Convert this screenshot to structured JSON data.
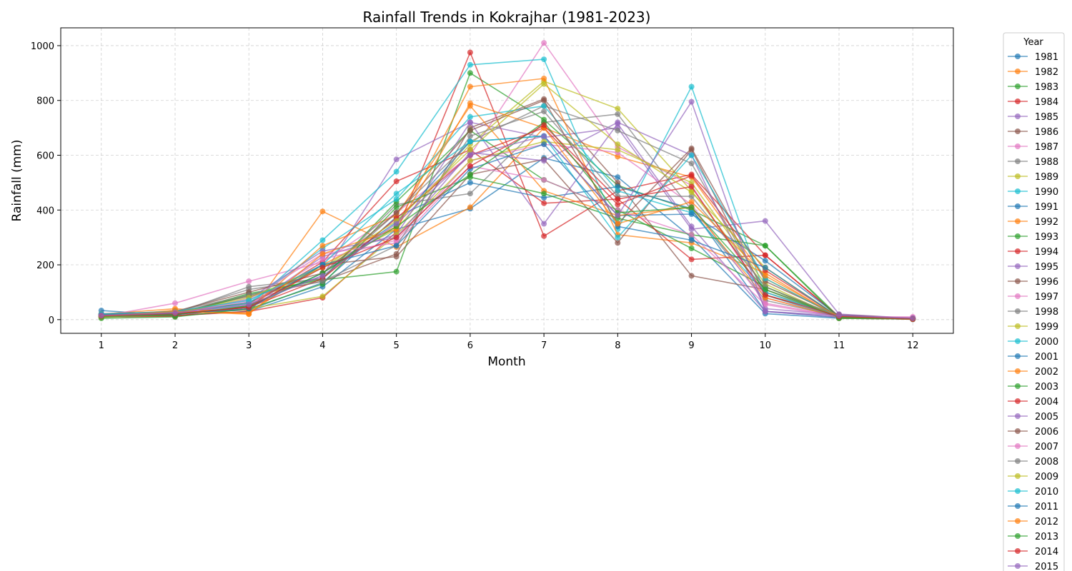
{
  "chart_data": {
    "type": "line",
    "title": "Rainfall Trends in Kokrajhar (1981-2023)",
    "xlabel": "Month",
    "ylabel": "Rainfall (mm)",
    "x": [
      1,
      2,
      3,
      4,
      5,
      6,
      7,
      8,
      9,
      10,
      11,
      12
    ],
    "xlim": [
      0.45,
      12.55
    ],
    "ylim": [
      -50,
      1065
    ],
    "yticks": [
      0,
      200,
      400,
      600,
      800,
      1000
    ],
    "grid": true,
    "legend": {
      "title": "Year",
      "placement": "outside-right"
    },
    "palette": [
      "#1f77b4",
      "#ff7f0e",
      "#2ca02c",
      "#d62728",
      "#9467bd",
      "#8c564b",
      "#e377c2",
      "#7f7f7f",
      "#bcbd22",
      "#17becf"
    ],
    "series": [
      {
        "name": "1981",
        "values": [
          33,
          15,
          30,
          120,
          330,
          405,
          590,
          520,
          300,
          22,
          5,
          2
        ]
      },
      {
        "name": "1982",
        "values": [
          20,
          40,
          20,
          395,
          265,
          410,
          700,
          595,
          520,
          150,
          8,
          1
        ]
      },
      {
        "name": "1983",
        "values": [
          10,
          18,
          95,
          145,
          175,
          900,
          730,
          490,
          400,
          270,
          10,
          3
        ]
      },
      {
        "name": "1984",
        "values": [
          12,
          14,
          30,
          80,
          320,
          975,
          305,
          470,
          530,
          235,
          12,
          2
        ]
      },
      {
        "name": "1985",
        "values": [
          15,
          20,
          65,
          160,
          585,
          720,
          665,
          700,
          330,
          360,
          20,
          5
        ]
      },
      {
        "name": "1986",
        "values": [
          18,
          25,
          85,
          140,
          240,
          700,
          805,
          500,
          160,
          110,
          15,
          3
        ]
      },
      {
        "name": "1987",
        "values": [
          12,
          60,
          140,
          210,
          390,
          600,
          1010,
          630,
          490,
          80,
          10,
          2
        ]
      },
      {
        "name": "1988",
        "values": [
          20,
          22,
          120,
          150,
          420,
          460,
          720,
          750,
          400,
          70,
          12,
          3
        ]
      },
      {
        "name": "1989",
        "values": [
          10,
          28,
          60,
          190,
          330,
          640,
          870,
          770,
          470,
          120,
          10,
          2
        ]
      },
      {
        "name": "1990",
        "values": [
          14,
          28,
          50,
          290,
          540,
          930,
          950,
          330,
          850,
          90,
          6,
          4
        ]
      },
      {
        "name": "1991",
        "values": [
          20,
          25,
          35,
          135,
          375,
          500,
          445,
          485,
          405,
          30,
          8,
          1
        ]
      },
      {
        "name": "1992",
        "values": [
          8,
          30,
          25,
          200,
          340,
          850,
          880,
          310,
          280,
          170,
          5,
          2
        ]
      },
      {
        "name": "1993",
        "values": [
          12,
          15,
          90,
          150,
          430,
          690,
          510,
          400,
          260,
          120,
          8,
          4
        ]
      },
      {
        "name": "1994",
        "values": [
          10,
          12,
          50,
          210,
          505,
          620,
          425,
          440,
          220,
          235,
          10,
          3
        ]
      },
      {
        "name": "1995",
        "values": [
          12,
          20,
          45,
          230,
          310,
          720,
          350,
          715,
          340,
          30,
          9,
          3
        ]
      },
      {
        "name": "1996",
        "values": [
          20,
          30,
          60,
          200,
          230,
          530,
          585,
          280,
          620,
          90,
          18,
          5
        ]
      },
      {
        "name": "1997",
        "values": [
          15,
          25,
          55,
          220,
          290,
          580,
          640,
          610,
          420,
          60,
          12,
          8
        ]
      },
      {
        "name": "1998",
        "values": [
          22,
          28,
          110,
          150,
          390,
          650,
          780,
          690,
          570,
          100,
          15,
          2
        ]
      },
      {
        "name": "1999",
        "values": [
          8,
          20,
          40,
          85,
          310,
          580,
          650,
          620,
          500,
          130,
          6,
          2
        ]
      },
      {
        "name": "2000",
        "values": [
          15,
          25,
          60,
          260,
          440,
          740,
          780,
          470,
          390,
          100,
          8,
          2
        ]
      },
      {
        "name": "2001",
        "values": [
          18,
          18,
          45,
          170,
          355,
          650,
          670,
          380,
          385,
          215,
          12,
          3
        ]
      },
      {
        "name": "2002",
        "values": [
          10,
          35,
          35,
          270,
          380,
          780,
          470,
          380,
          410,
          80,
          8,
          2
        ]
      },
      {
        "name": "2003",
        "values": [
          5,
          10,
          40,
          130,
          410,
          520,
          460,
          370,
          310,
          270,
          5,
          2
        ]
      },
      {
        "name": "2004",
        "values": [
          15,
          20,
          45,
          150,
          370,
          600,
          700,
          420,
          525,
          180,
          10,
          5
        ]
      },
      {
        "name": "2005",
        "values": [
          12,
          22,
          75,
          250,
          300,
          610,
          580,
          720,
          600,
          40,
          18,
          2
        ]
      },
      {
        "name": "2006",
        "values": [
          18,
          30,
          100,
          170,
          390,
          690,
          800,
          350,
          625,
          140,
          15,
          3
        ]
      },
      {
        "name": "2007",
        "values": [
          10,
          20,
          70,
          240,
          280,
          560,
          510,
          400,
          310,
          55,
          10,
          10
        ]
      },
      {
        "name": "2008",
        "values": [
          15,
          30,
          90,
          140,
          270,
          670,
          760,
          450,
          450,
          120,
          12,
          4
        ]
      },
      {
        "name": "2009",
        "values": [
          12,
          22,
          80,
          190,
          360,
          620,
          860,
          640,
          465,
          190,
          10,
          2
        ]
      },
      {
        "name": "2010",
        "values": [
          20,
          30,
          70,
          200,
          460,
          650,
          670,
          300,
          600,
          150,
          10,
          3
        ]
      },
      {
        "name": "2011",
        "values": [
          15,
          20,
          40,
          200,
          270,
          550,
          640,
          340,
          290,
          190,
          8,
          2
        ]
      },
      {
        "name": "2012",
        "values": [
          12,
          30,
          20,
          240,
          330,
          790,
          700,
          350,
          430,
          160,
          10,
          2
        ]
      },
      {
        "name": "2013",
        "values": [
          10,
          18,
          50,
          170,
          340,
          530,
          720,
          390,
          410,
          110,
          8,
          3
        ]
      },
      {
        "name": "2014",
        "values": [
          14,
          22,
          45,
          190,
          300,
          560,
          710,
          440,
          485,
          90,
          12,
          2
        ]
      },
      {
        "name": "2015",
        "values": [
          15,
          25,
          55,
          160,
          350,
          600,
          670,
          380,
          795,
          30,
          15,
          5
        ]
      }
    ]
  }
}
